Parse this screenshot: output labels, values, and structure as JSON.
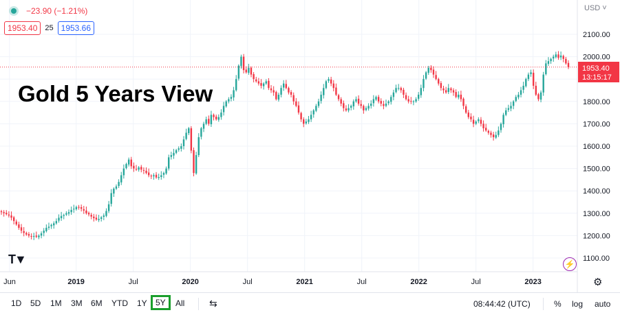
{
  "header": {
    "change": "−23.90 (−1.21%)",
    "bid": "1953.40",
    "spread": "25",
    "ask": "1953.66",
    "currency": "USD ˅"
  },
  "overlay_title": "Gold 5 Years View",
  "current_price": {
    "label": "1953.40",
    "countdown": "13:15:17",
    "color": "#f23645"
  },
  "colors": {
    "up": "#26a69a",
    "down": "#f23645",
    "grid": "#f0f3fa",
    "bid": "#f23645",
    "ask": "#2962ff",
    "highlight": "#1a9e2c"
  },
  "toolbar": {
    "ranges": [
      "1D",
      "5D",
      "1M",
      "3M",
      "6M",
      "YTD",
      "1Y",
      "5Y",
      "All"
    ],
    "selected_range": "5Y",
    "clock": "08:44:42 (UTC)",
    "percent": "%",
    "log": "log",
    "auto": "auto",
    "icons": [
      "tradingview-logo-icon",
      "lightning-icon",
      "gear-icon",
      "compare-icon"
    ]
  },
  "chart_data": {
    "type": "candlestick",
    "title": "",
    "y_ticks": [
      "2100.00",
      "2000.00",
      "1900.00",
      "1800.00",
      "1700.00",
      "1600.00",
      "1500.00",
      "1400.00",
      "1300.00",
      "1200.00",
      "1100.00"
    ],
    "x_ticks": [
      "Jun",
      "2019",
      "Jul",
      "2020",
      "Jul",
      "2021",
      "Jul",
      "2022",
      "Jul",
      "2023"
    ],
    "x_tick_dates": [
      "2018-06",
      "2019-01",
      "2019-07",
      "2020-01",
      "2020-07",
      "2021-01",
      "2021-07",
      "2022-01",
      "2022-07",
      "2023-01"
    ],
    "x_range": [
      "2018-05",
      "2023-05"
    ],
    "ylim": [
      1050,
      2150
    ],
    "current_price": 1953.4,
    "series": [
      {
        "interval": "weekly",
        "start": "2018-05",
        "closes": [
          1305,
          1300,
          1296,
          1290,
          1280,
          1265,
          1250,
          1235,
          1222,
          1212,
          1205,
          1200,
          1195,
          1198,
          1195,
          1200,
          1210,
          1222,
          1235,
          1240,
          1248,
          1255,
          1265,
          1280,
          1288,
          1292,
          1300,
          1305,
          1315,
          1320,
          1328,
          1325,
          1320,
          1312,
          1300,
          1295,
          1285,
          1278,
          1272,
          1275,
          1282,
          1290,
          1310,
          1340,
          1390,
          1410,
          1420,
          1440,
          1470,
          1500,
          1520,
          1540,
          1510,
          1500,
          1495,
          1505,
          1495,
          1490,
          1480,
          1470,
          1465,
          1470,
          1460,
          1462,
          1470,
          1480,
          1500,
          1550,
          1560,
          1570,
          1582,
          1590,
          1600,
          1630,
          1660,
          1680,
          1580,
          1480,
          1560,
          1640,
          1680,
          1700,
          1720,
          1700,
          1740,
          1730,
          1720,
          1730,
          1750,
          1780,
          1800,
          1810,
          1820,
          1850,
          1900,
          1960,
          2000,
          1940,
          1930,
          1950,
          1920,
          1900,
          1890,
          1880,
          1870,
          1880,
          1890,
          1860,
          1850,
          1840,
          1810,
          1830,
          1860,
          1880,
          1860,
          1840,
          1830,
          1800,
          1780,
          1750,
          1720,
          1700,
          1710,
          1720,
          1740,
          1760,
          1780,
          1800,
          1830,
          1860,
          1890,
          1900,
          1880,
          1860,
          1830,
          1810,
          1790,
          1770,
          1760,
          1770,
          1780,
          1800,
          1810,
          1790,
          1780,
          1760,
          1770,
          1780,
          1790,
          1810,
          1820,
          1800,
          1790,
          1780,
          1790,
          1800,
          1820,
          1840,
          1860,
          1860,
          1850,
          1830,
          1810,
          1800,
          1800,
          1800,
          1810,
          1830,
          1860,
          1900,
          1930,
          1950,
          1940,
          1920,
          1900,
          1880,
          1860,
          1850,
          1840,
          1860,
          1850,
          1840,
          1820,
          1830,
          1810,
          1780,
          1750,
          1730,
          1720,
          1700,
          1710,
          1720,
          1700,
          1680,
          1670,
          1660,
          1650,
          1640,
          1650,
          1670,
          1700,
          1740,
          1760,
          1770,
          1780,
          1800,
          1820,
          1830,
          1850,
          1870,
          1900,
          1920,
          1930,
          1870,
          1830,
          1810,
          1840,
          1920,
          1970,
          1980,
          1990,
          2000,
          2010,
          1995,
          2005,
          1990,
          1970,
          1953.4
        ]
      }
    ]
  }
}
